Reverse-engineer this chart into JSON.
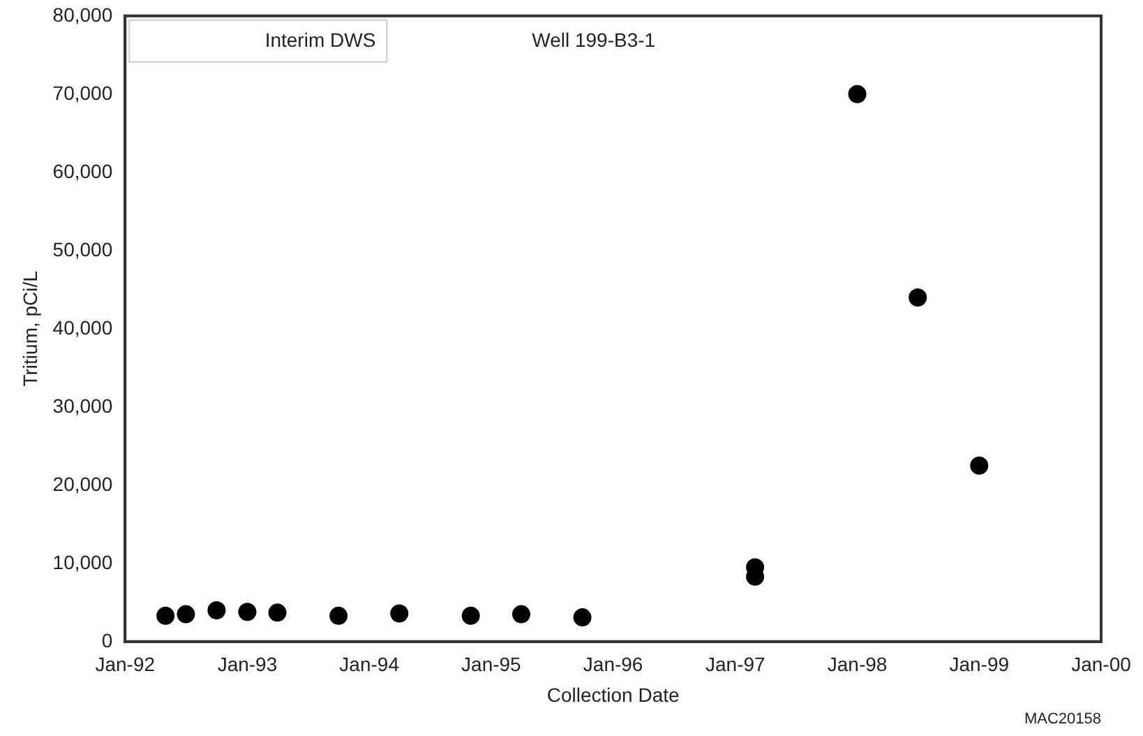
{
  "chart_data": {
    "type": "scatter",
    "xlabel": "Collection Date",
    "ylabel": "Tritium, pCi/L",
    "annotations": [
      "Interim DWS",
      "Well 199-B3-1",
      "MAC20158"
    ],
    "x": [
      "1992-05",
      "1992-07",
      "1992-10",
      "1993-01",
      "1993-04",
      "1993-10",
      "1994-04",
      "1994-11",
      "1995-04",
      "1995-10",
      "1997-03",
      "1997-03",
      "1998-01",
      "1998-07",
      "1999-01"
    ],
    "series": [
      {
        "color": "#000000",
        "values": [
          3300,
          3500,
          4000,
          3800,
          3700,
          3300,
          3600,
          3300,
          3500,
          3100,
          9500,
          8300,
          70000,
          44000,
          22500
        ]
      }
    ],
    "xlim": [
      "1992-01-01",
      "2000-01-01"
    ],
    "xticks": [
      {
        "value": "1992-01-01",
        "label": "Jan-92"
      },
      {
        "value": "1993-01-01",
        "label": "Jan-93"
      },
      {
        "value": "1994-01-01",
        "label": "Jan-94"
      },
      {
        "value": "1995-01-01",
        "label": "Jan-95"
      },
      {
        "value": "1996-01-01",
        "label": "Jan-96"
      },
      {
        "value": "1997-01-01",
        "label": "Jan-97"
      },
      {
        "value": "1998-01-01",
        "label": "Jan-98"
      },
      {
        "value": "1999-01-01",
        "label": "Jan-99"
      },
      {
        "value": "2000-01-01",
        "label": "Jan-00"
      }
    ],
    "ylim": [
      0,
      80000
    ],
    "yticks": [
      0,
      {
        "value": 10000,
        "label": "10,000"
      },
      {
        "value": 20000,
        "label": "20,000"
      },
      {
        "value": 30000,
        "label": "30,000"
      },
      {
        "value": 40000,
        "label": "40,000"
      },
      {
        "value": 50000,
        "label": "50,000"
      },
      {
        "value": 60000,
        "label": "60,000"
      },
      {
        "value": 70000,
        "label": "70,000"
      },
      {
        "value": 80000,
        "label": "80,000"
      }
    ],
    "grid": false,
    "legend": false,
    "marker": "circle"
  }
}
